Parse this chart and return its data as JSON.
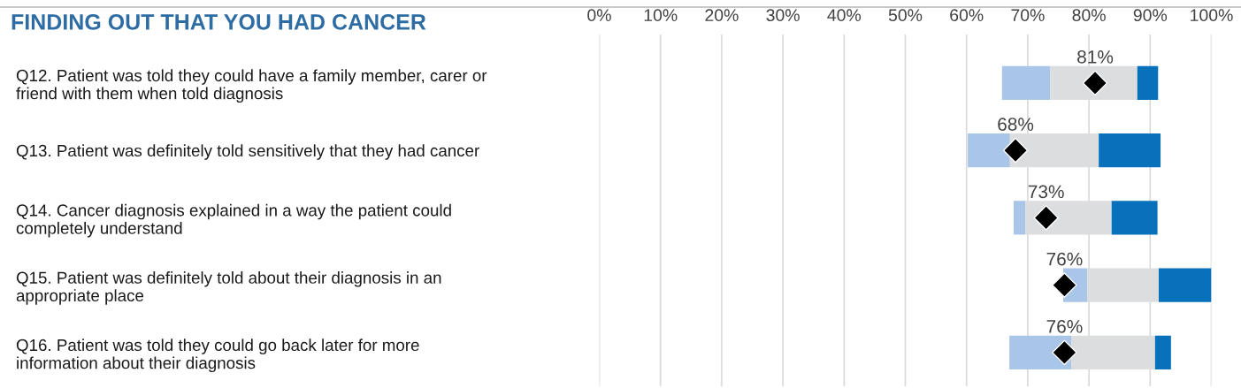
{
  "chart_data": {
    "type": "bar",
    "orientation": "horizontal",
    "title": "FINDING OUT THAT YOU HAD CANCER",
    "categories": [
      "Q12. Patient was told they could have a family member, carer or\nfriend with them when told diagnosis",
      "Q13. Patient was definitely told sensitively that they had cancer",
      "Q14. Cancer diagnosis explained in a way the patient could\ncompletely understand",
      "Q15. Patient was definitely told about their diagnosis in an\nappropriate place",
      "Q16. Patient was told they could go back later for more\ninformation about their diagnosis"
    ],
    "series": [
      {
        "color": "#a9c6e8",
        "base": [
          65.8,
          60.2,
          67.7,
          75.8,
          67.0
        ],
        "values": [
          7.9,
          6.9,
          1.9,
          3.9,
          10.1
        ]
      },
      {
        "color": "#dcdddf",
        "base": [
          73.7,
          67.1,
          69.6,
          79.7,
          77.1
        ],
        "values": [
          14.2,
          14.5,
          14.1,
          11.7,
          13.7
        ]
      },
      {
        "color": "#0772bb",
        "base": [
          87.9,
          81.6,
          83.7,
          91.4,
          90.8
        ],
        "values": [
          3.4,
          10.1,
          7.5,
          8.6,
          2.6
        ]
      },
      {
        "type": "scatter",
        "color": "#000000",
        "marker": "diamond",
        "values": [
          81,
          68,
          73,
          76,
          76
        ],
        "value_labels": [
          "81%",
          "68%",
          "73%",
          "76%",
          "76%"
        ]
      }
    ],
    "xlim": [
      0,
      100
    ],
    "xticks": [
      {
        "value": 0,
        "label": "0%"
      },
      {
        "value": 10,
        "label": "10%"
      },
      {
        "value": 20,
        "label": "20%"
      },
      {
        "value": 30,
        "label": "30%"
      },
      {
        "value": 40,
        "label": "40%"
      },
      {
        "value": 50,
        "label": "50%"
      },
      {
        "value": 60,
        "label": "60%"
      },
      {
        "value": 70,
        "label": "70%"
      },
      {
        "value": 80,
        "label": "80%"
      },
      {
        "value": 90,
        "label": "90%"
      },
      {
        "value": 100,
        "label": "100%"
      }
    ],
    "grid": "x",
    "legend": false
  }
}
